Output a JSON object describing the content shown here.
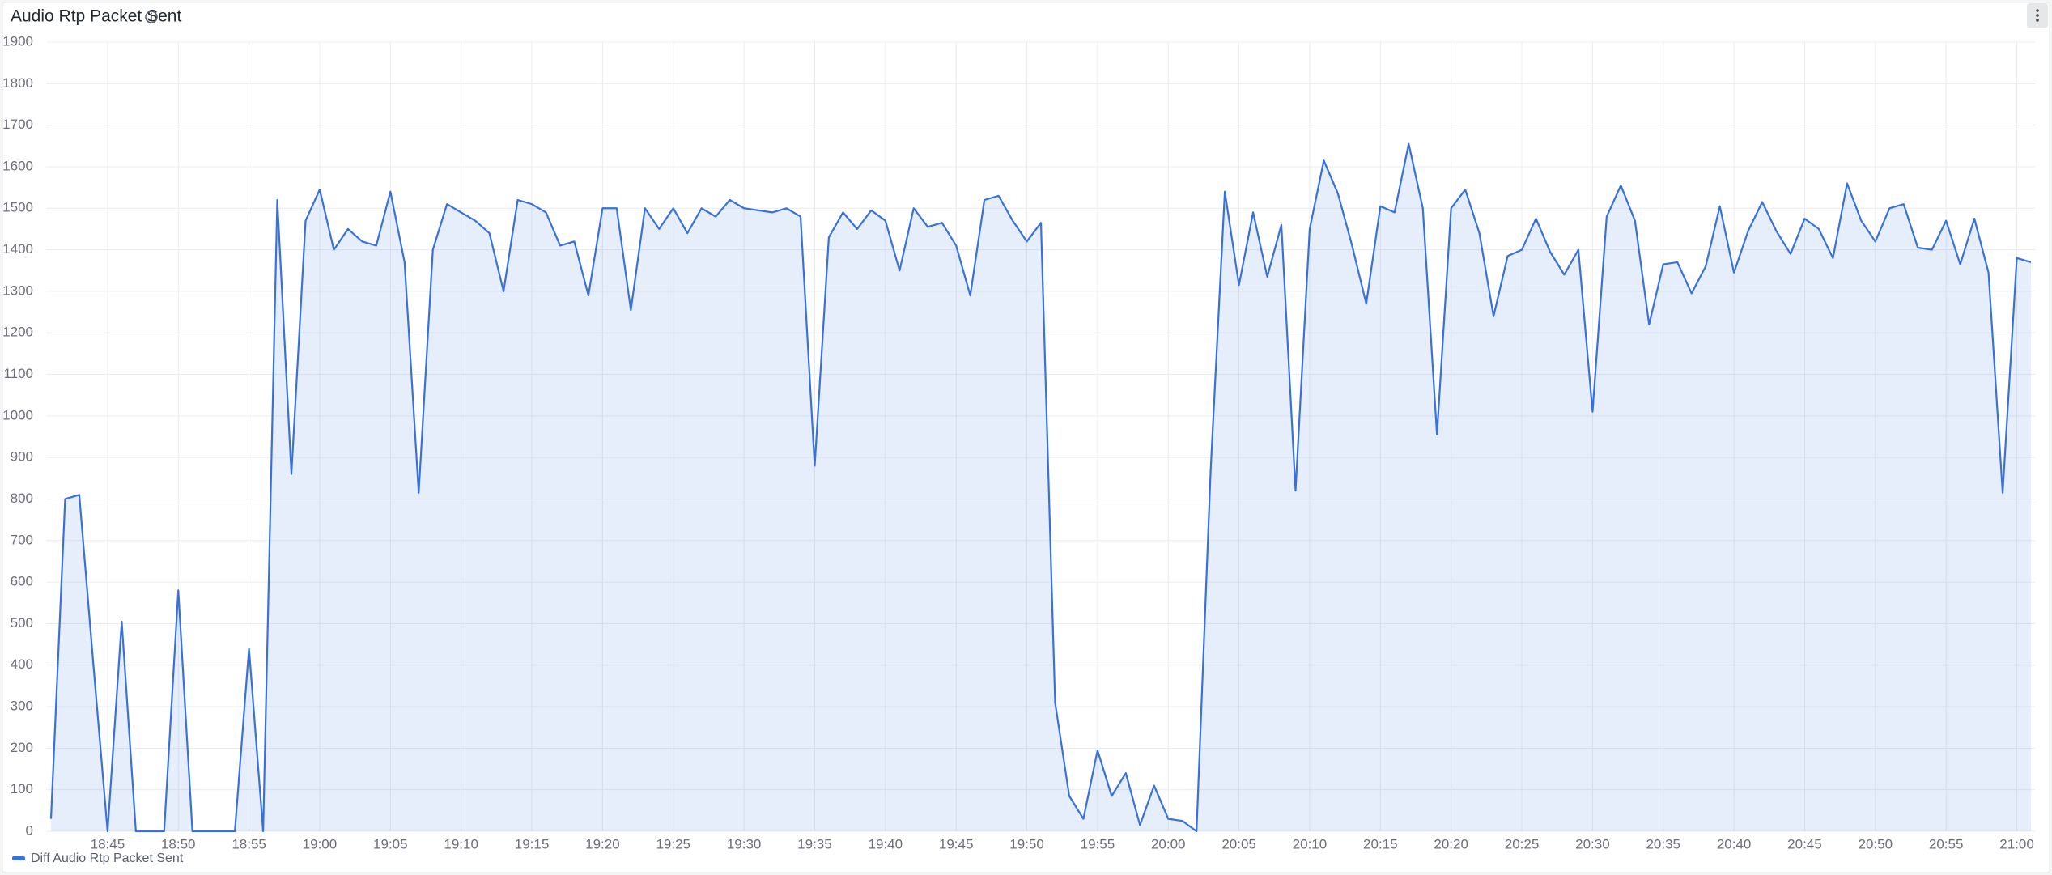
{
  "chart_data": {
    "type": "area",
    "title": "Audio Rtp Packet Sent",
    "x": [
      "18:41",
      "18:42",
      "18:43",
      "18:44",
      "18:45",
      "18:46",
      "18:47",
      "18:48",
      "18:49",
      "18:50",
      "18:51",
      "18:52",
      "18:53",
      "18:54",
      "18:55",
      "18:56",
      "18:57",
      "18:58",
      "18:59",
      "19:00",
      "19:01",
      "19:02",
      "19:03",
      "19:04",
      "19:05",
      "19:06",
      "19:07",
      "19:08",
      "19:09",
      "19:10",
      "19:11",
      "19:12",
      "19:13",
      "19:14",
      "19:15",
      "19:16",
      "19:17",
      "19:18",
      "19:19",
      "19:20",
      "19:21",
      "19:22",
      "19:23",
      "19:24",
      "19:25",
      "19:26",
      "19:27",
      "19:28",
      "19:29",
      "19:30",
      "19:31",
      "19:32",
      "19:33",
      "19:34",
      "19:35",
      "19:36",
      "19:37",
      "19:38",
      "19:39",
      "19:40",
      "19:41",
      "19:42",
      "19:43",
      "19:44",
      "19:45",
      "19:46",
      "19:47",
      "19:48",
      "19:49",
      "19:50",
      "19:51",
      "19:52",
      "19:53",
      "19:54",
      "19:55",
      "19:56",
      "19:57",
      "19:58",
      "19:59",
      "20:00",
      "20:01",
      "20:02",
      "20:03",
      "20:04",
      "20:05",
      "20:06",
      "20:07",
      "20:08",
      "20:09",
      "20:10",
      "20:11",
      "20:12",
      "20:13",
      "20:14",
      "20:15",
      "20:16",
      "20:17",
      "20:18",
      "20:19",
      "20:20",
      "20:21",
      "20:22",
      "20:23",
      "20:24",
      "20:25",
      "20:26",
      "20:27",
      "20:28",
      "20:29",
      "20:30",
      "20:31",
      "20:32",
      "20:33",
      "20:34",
      "20:35",
      "20:36",
      "20:37",
      "20:38",
      "20:39",
      "20:40",
      "20:41",
      "20:42",
      "20:43",
      "20:44",
      "20:45",
      "20:46",
      "20:47",
      "20:48",
      "20:49",
      "20:50",
      "20:51",
      "20:52",
      "20:53",
      "20:54",
      "20:55",
      "20:56",
      "20:57",
      "20:58",
      "20:59",
      "21:00",
      "21:01"
    ],
    "series": [
      {
        "name": "Diff Audio Rtp Packet Sent",
        "color": "#3871dc",
        "values": [
          30,
          800,
          810,
          400,
          0,
          505,
          0,
          0,
          0,
          580,
          0,
          0,
          0,
          0,
          440,
          0,
          1520,
          860,
          1470,
          1545,
          1400,
          1450,
          1420,
          1410,
          1540,
          1370,
          815,
          1400,
          1510,
          1490,
          1470,
          1440,
          1300,
          1520,
          1510,
          1490,
          1410,
          1420,
          1290,
          1500,
          1500,
          1255,
          1500,
          1450,
          1500,
          1440,
          1500,
          1480,
          1520,
          1500,
          1495,
          1490,
          1500,
          1480,
          880,
          1430,
          1490,
          1450,
          1495,
          1470,
          1350,
          1500,
          1455,
          1465,
          1410,
          1290,
          1520,
          1530,
          1470,
          1420,
          1465,
          310,
          85,
          30,
          195,
          85,
          140,
          15,
          110,
          30,
          25,
          0,
          870,
          1540,
          1315,
          1490,
          1335,
          1460,
          820,
          1450,
          1615,
          1535,
          1410,
          1270,
          1505,
          1490,
          1655,
          1500,
          955,
          1500,
          1545,
          1440,
          1240,
          1385,
          1400,
          1475,
          1395,
          1340,
          1400,
          1010,
          1480,
          1555,
          1470,
          1220,
          1365,
          1370,
          1295,
          1360,
          1505,
          1345,
          1445,
          1515,
          1445,
          1390,
          1475,
          1450,
          1380,
          1560,
          1470,
          1420,
          1500,
          1510,
          1405,
          1400,
          1470,
          1365,
          1475,
          1345,
          815,
          1380,
          1370
        ]
      }
    ],
    "xlim": [
      "18:41",
      "21:01"
    ],
    "xticks": [
      "18:45",
      "18:50",
      "18:55",
      "19:00",
      "19:05",
      "19:10",
      "19:15",
      "19:20",
      "19:25",
      "19:30",
      "19:35",
      "19:40",
      "19:45",
      "19:50",
      "19:55",
      "20:00",
      "20:05",
      "20:10",
      "20:15",
      "20:20",
      "20:25",
      "20:30",
      "20:35",
      "20:40",
      "20:45",
      "20:50",
      "20:55",
      "21:00"
    ],
    "ylim": [
      0,
      1900
    ],
    "yticks": [
      0,
      100,
      200,
      300,
      400,
      500,
      600,
      700,
      800,
      900,
      1000,
      1100,
      1200,
      1300,
      1400,
      1500,
      1600,
      1700,
      1800,
      1900
    ],
    "grid": true
  }
}
